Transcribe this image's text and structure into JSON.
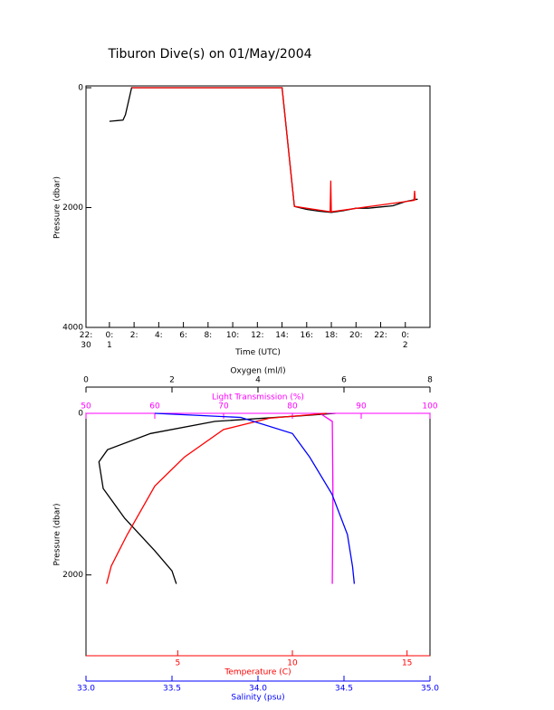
{
  "chart_data": [
    {
      "type": "line",
      "title": "Tiburon Dive(s) on 01/May/2004",
      "x_label": "Time (UTC)",
      "y_label": "Pressure (dbar)",
      "xlim": [
        -1.9,
        26
      ],
      "xticks": [
        {
          "value": -1.9,
          "label": "22:\n30"
        },
        {
          "value": 0,
          "label": "0:\n1"
        },
        {
          "value": 2,
          "label": "2:"
        },
        {
          "value": 4,
          "label": "4:"
        },
        {
          "value": 6,
          "label": "6:"
        },
        {
          "value": 8,
          "label": "8:"
        },
        {
          "value": 10,
          "label": "10:"
        },
        {
          "value": 12,
          "label": "12:"
        },
        {
          "value": 14,
          "label": "14:"
        },
        {
          "value": 16,
          "label": "16:"
        },
        {
          "value": 18,
          "label": "18:"
        },
        {
          "value": 20,
          "label": "20:"
        },
        {
          "value": 22,
          "label": "22:"
        },
        {
          "value": 24,
          "label": "0:\n2"
        }
      ],
      "ylim": [
        0,
        4000
      ],
      "yticks": [
        0,
        2000,
        4000
      ],
      "y_inverted": true,
      "series": [
        {
          "color": "#000000",
          "x": [
            0,
            1.1,
            1.3,
            1.8,
            14.0,
            15.0,
            16,
            17,
            18,
            19,
            20,
            21,
            22,
            23,
            24,
            25
          ],
          "values": [
            560,
            540,
            450,
            0,
            0,
            1980,
            2030,
            2060,
            2080,
            2050,
            2010,
            2010,
            1990,
            1970,
            1900,
            1860
          ]
        },
        {
          "color": "#ff0000",
          "x": [
            1.8,
            14.0,
            15.0,
            17.9,
            17.95,
            18.0,
            24.7,
            24.75,
            24.8
          ],
          "values": [
            0,
            0,
            1980,
            2070,
            1550,
            2070,
            1880,
            1720,
            1880
          ]
        }
      ]
    },
    {
      "type": "profile",
      "y_label": "Pressure (dbar)",
      "ylim": [
        0,
        3000
      ],
      "yticks": [
        0,
        2000
      ],
      "y_inverted": true,
      "series": [
        {
          "name": "Oxygen (ml/l)",
          "color": "#000000",
          "xlim": [
            0,
            8
          ],
          "xticks": [
            0,
            2,
            4,
            6,
            8
          ],
          "x": [
            5.8,
            5.0,
            3.0,
            1.5,
            0.5,
            0.3,
            0.4,
            0.9,
            1.6,
            2.0,
            2.1
          ],
          "values": [
            0,
            30,
            100,
            250,
            450,
            600,
            930,
            1300,
            1700,
            1950,
            2110
          ]
        },
        {
          "name": "Light Transmission (%)",
          "color": "#ff00ff",
          "xlim": [
            50,
            100
          ],
          "xticks": [
            50,
            60,
            70,
            80,
            90,
            100
          ],
          "x": [
            84,
            85.8,
            85.9,
            85.8
          ],
          "values": [
            0,
            100,
            1000,
            2110
          ]
        },
        {
          "name": "Temperature (C)",
          "color": "#ff0000",
          "xlim": [
            1,
            16
          ],
          "xticks": [
            5,
            10,
            15
          ],
          "x": [
            11.5,
            9.0,
            7.0,
            5.3,
            4.0,
            2.8,
            2.1,
            1.9
          ],
          "values": [
            0,
            60,
            200,
            540,
            900,
            1500,
            1890,
            2110
          ]
        },
        {
          "name": "Salinity (psu)",
          "color": "#0000ff",
          "xlim": [
            33,
            35
          ],
          "xticks": [
            {
              "value": 33,
              "label": "33.0"
            },
            33.5,
            {
              "value": 34,
              "label": "34.0"
            },
            34.5,
            {
              "value": 35,
              "label": "35.0"
            }
          ],
          "x": [
            33.4,
            33.9,
            34.2,
            34.3,
            34.43,
            34.52,
            34.55,
            34.56
          ],
          "values": [
            0,
            50,
            250,
            540,
            1000,
            1500,
            1900,
            2110
          ]
        }
      ]
    }
  ]
}
